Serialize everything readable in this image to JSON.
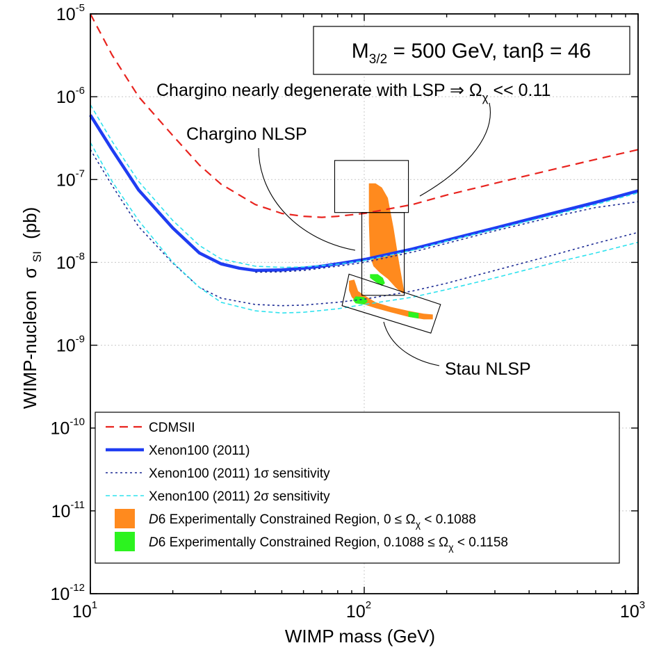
{
  "chart_data": {
    "type": "line",
    "title": "",
    "xlabel": "WIMP mass (GeV)",
    "ylabel": "WIMP-nucleon",
    "ylabel_symbol": "σ",
    "ylabel_subscript": "SI",
    "ylabel_unit": "(pb)",
    "xscale": "log",
    "yscale": "log",
    "xlim": [
      10,
      1000
    ],
    "ylim": [
      1e-12,
      1e-05
    ],
    "x_ticks": [
      {
        "value": 10,
        "base": "10",
        "exp": "1"
      },
      {
        "value": 100,
        "base": "10",
        "exp": "2"
      },
      {
        "value": 1000,
        "base": "10",
        "exp": "3"
      }
    ],
    "y_ticks": [
      {
        "value": 1e-12,
        "base": "10",
        "exp": "-12"
      },
      {
        "value": 1e-11,
        "base": "10",
        "exp": "-11"
      },
      {
        "value": 1e-10,
        "base": "10",
        "exp": "-10"
      },
      {
        "value": 1e-09,
        "base": "10",
        "exp": "-9"
      },
      {
        "value": 1e-08,
        "base": "10",
        "exp": "-8"
      },
      {
        "value": 1e-07,
        "base": "10",
        "exp": "-7"
      },
      {
        "value": 1e-06,
        "base": "10",
        "exp": "-6"
      },
      {
        "value": 1e-05,
        "base": "10",
        "exp": "-5"
      }
    ],
    "grid": true,
    "legend_position": "bottom",
    "series": [
      {
        "name": "CDMSII",
        "color": "#e8231e",
        "style": "dashed",
        "x": [
          10,
          12,
          15,
          20,
          25,
          30,
          40,
          50,
          60,
          70,
          80,
          100,
          150,
          200,
          300,
          500,
          700,
          1000
        ],
        "y": [
          1e-05,
          3.2e-06,
          1e-06,
          3.4e-07,
          1.5e-07,
          8.8e-08,
          5e-08,
          3.9e-08,
          3.6e-08,
          3.5e-08,
          3.6e-08,
          3.9e-08,
          5e-08,
          6.5e-08,
          9e-08,
          1.35e-07,
          1.75e-07,
          2.3e-07
        ]
      },
      {
        "name": "Xenon100 (2011)",
        "color": "#1f3df2",
        "style": "solid-thick",
        "x": [
          10,
          12,
          15,
          20,
          25,
          30,
          35,
          40,
          50,
          60,
          70,
          80,
          100,
          150,
          200,
          300,
          500,
          700,
          1000
        ],
        "y": [
          6e-07,
          2.3e-07,
          7.5e-08,
          2.6e-08,
          1.3e-08,
          9.6e-09,
          8.5e-09,
          8e-09,
          8.1e-09,
          8.5e-09,
          9e-09,
          9.6e-09,
          1.08e-08,
          1.45e-08,
          1.85e-08,
          2.6e-08,
          4e-08,
          5.3e-08,
          7.3e-08
        ]
      },
      {
        "name": "Xenon100 (2011) 1σ sensitivity",
        "color": "#1b2a94",
        "style": "dotted",
        "x": [
          10,
          12,
          15,
          20,
          25,
          30,
          40,
          50,
          60,
          80,
          100,
          150,
          200,
          300,
          500,
          700,
          1000
        ],
        "y": [
          2.3e-07,
          8.5e-08,
          2.7e-08,
          9.8e-09,
          5e-09,
          3.7e-09,
          3.1e-09,
          3e-09,
          3.05e-09,
          3.3e-09,
          3.6e-09,
          4.5e-09,
          5.6e-09,
          8e-09,
          1.25e-08,
          1.7e-08,
          2.3e-08
        ]
      },
      {
        "name": "Xenon100 (2011) 1σ sensitivity (upper)",
        "color": "#1b2a94",
        "style": "dotted",
        "x": [
          40,
          50,
          60,
          80,
          100,
          150,
          200,
          300,
          500,
          700,
          1000
        ],
        "y": [
          7.6e-09,
          7.7e-09,
          8e-09,
          9e-09,
          1e-08,
          1.33e-08,
          1.7e-08,
          2.4e-08,
          3.6e-08,
          4.6e-08,
          5.4e-08
        ]
      },
      {
        "name": "Xenon100 (2011) 2σ sensitivity",
        "color": "#2fe2ee",
        "style": "dashed-thin",
        "x": [
          10,
          12,
          15,
          20,
          25,
          30,
          40,
          50,
          60,
          80,
          100,
          150,
          200,
          300,
          500,
          700,
          1000
        ],
        "y": [
          2.8e-07,
          9.5e-08,
          3.2e-08,
          1e-08,
          5e-09,
          3.3e-09,
          2.6e-09,
          2.45e-09,
          2.5e-09,
          2.75e-09,
          3.1e-09,
          3.8e-09,
          4.7e-09,
          6.5e-09,
          1e-08,
          1.3e-08,
          1.75e-08
        ]
      },
      {
        "name": "Xenon100 (2011) 2σ sensitivity (upper)",
        "color": "#2fe2ee",
        "style": "dashed-thin",
        "x": [
          10,
          12,
          15,
          20,
          25,
          30,
          40,
          50,
          60,
          80,
          100,
          150,
          200,
          300,
          500,
          700,
          1000
        ],
        "y": [
          8e-07,
          2.9e-07,
          9.5e-08,
          3.2e-08,
          1.6e-08,
          1.1e-08,
          9e-09,
          8.7e-09,
          8.8e-09,
          9.5e-09,
          1.05e-08,
          1.4e-08,
          1.8e-08,
          2.5e-08,
          3.8e-08,
          5e-08,
          6.9e-08
        ]
      }
    ],
    "regions": [
      {
        "name": "D6 Experimentally Constrained Region, 0 ≤ Ωχ < 0.1088 (chargino NLSP)",
        "color": "#ff8a1e",
        "x": [
          104,
          110,
          116,
          122,
          128,
          134,
          140,
          138,
          130,
          122,
          114,
          108,
          105,
          104
        ],
        "y": [
          9e-08,
          9e-08,
          8e-08,
          6e-08,
          2.6e-08,
          1e-08,
          4.4e-09,
          4.2e-09,
          5e-09,
          6.3e-09,
          7.5e-09,
          9e-09,
          1.2e-08,
          3e-08
        ]
      },
      {
        "name": "D6 Experimentally Constrained Region, 0 ≤ Ωχ < 0.1088 (stau NLSP)",
        "color": "#ff8a1e",
        "x": [
          88,
          92,
          95,
          100,
          110,
          125,
          145,
          165,
          178,
          178,
          165,
          145,
          125,
          110,
          100,
          94,
          90,
          88
        ],
        "y": [
          6e-09,
          6.2e-09,
          4.5e-09,
          4e-09,
          3.3e-09,
          2.9e-09,
          2.6e-09,
          2.4e-09,
          2.35e-09,
          2.05e-09,
          2.05e-09,
          2.2e-09,
          2.5e-09,
          2.8e-09,
          3.1e-09,
          3.3e-09,
          3.8e-09,
          4.6e-09
        ]
      },
      {
        "name": "D6 Experimentally Constrained Region, 0.1088 ≤ Ωχ < 0.1158 (chargino NLSP)",
        "color": "#2cf31f",
        "x": [
          105,
          112,
          117,
          119,
          116,
          110,
          105
        ],
        "y": [
          7.2e-09,
          7.2e-09,
          6.5e-09,
          5.6e-09,
          5.2e-09,
          5.8e-09,
          6.5e-09
        ]
      },
      {
        "name": "D6 Experimentally Constrained Region, 0.1088 ≤ Ωχ < 0.1158 (stau NLSP)",
        "color": "#2cf31f",
        "x": [
          93,
          100,
          103,
          100,
          93,
          91
        ],
        "y": [
          3.9e-09,
          3.8e-09,
          3.4e-09,
          3.1e-09,
          3.2e-09,
          3.5e-09
        ]
      },
      {
        "name": "D6 Experimentally Constrained Region, 0.1088 ≤ Ωχ < 0.1158 (stau NLSP, high mass)",
        "color": "#2cf31f",
        "x": [
          145,
          158,
          158,
          145
        ],
        "y": [
          2.55e-09,
          2.45e-09,
          2.1e-09,
          2.2e-09
        ]
      }
    ],
    "annotation_boxes": [
      {
        "x": [
          78,
          145
        ],
        "y": [
          4e-08,
          1.7e-07
        ]
      },
      {
        "x": [
          98,
          140
        ],
        "y": [
          4e-09,
          4e-08
        ]
      }
    ],
    "tilted_box": {
      "x": [
        83,
        88,
        190,
        175
      ],
      "y": [
        3e-09,
        7.2e-09,
        3.1e-09,
        1.4e-09
      ]
    }
  },
  "box_label": {
    "prefix": "M",
    "sub": "3/2",
    "rest": " = 500 GeV, tanβ = 46"
  },
  "annotations": {
    "chargino_degenerate": {
      "text": "Chargino nearly degenerate with LSP ⇒ Ω",
      "sub": "χ",
      "tail": " << 0.11"
    },
    "chargino_nlsp": "Chargino NLSP",
    "stau_nlsp": "Stau NLSP"
  },
  "legend": {
    "items": [
      {
        "label": "CDMSII",
        "kind": "line",
        "color": "#e8231e",
        "style": "dashed"
      },
      {
        "label": "Xenon100 (2011)",
        "kind": "line",
        "color": "#1f3df2",
        "style": "solid-thick"
      },
      {
        "label": "Xenon100 (2011) 1σ sensitivity",
        "kind": "line",
        "color": "#1b2a94",
        "style": "dotted"
      },
      {
        "label": "Xenon100 (2011) 2σ sensitivity",
        "kind": "line",
        "color": "#2fe2ee",
        "style": "dashed-thin"
      },
      {
        "label_italic": "D",
        "label": "6 Experimentally Constrained Region, 0 ≤ Ω",
        "sub": "χ",
        "tail": " < 0.1088",
        "kind": "patch",
        "color": "#ff8a1e"
      },
      {
        "label_italic": "D",
        "label": "6 Experimentally Constrained Region, 0.1088 ≤ Ω",
        "sub": "χ",
        "tail": " < 0.1158",
        "kind": "patch",
        "color": "#2cf31f"
      }
    ]
  }
}
